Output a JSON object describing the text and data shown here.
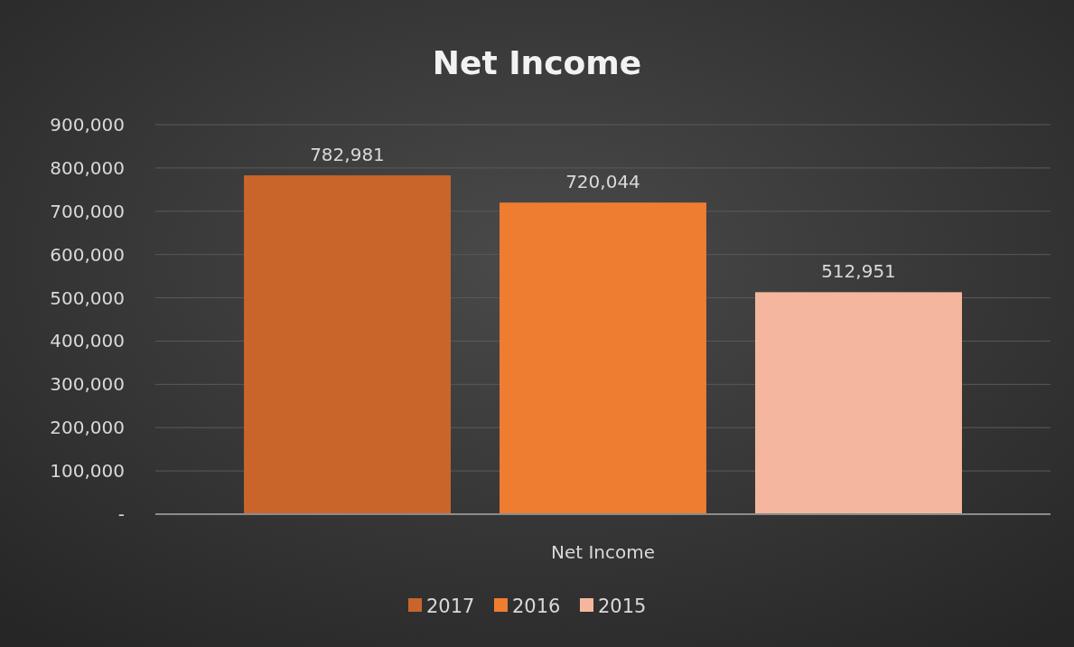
{
  "chart_data": {
    "type": "bar",
    "title": "Net Income",
    "categories": [
      "Net Income"
    ],
    "series": [
      {
        "name": "2017",
        "color": "#c9652b",
        "values": [
          782981
        ],
        "value_labels": [
          "782,981"
        ]
      },
      {
        "name": "2016",
        "color": "#ef7d31",
        "values": [
          720044
        ],
        "value_labels": [
          "720,044"
        ]
      },
      {
        "name": "2015",
        "color": "#f4b79e",
        "values": [
          512951
        ],
        "value_labels": [
          "512,951"
        ]
      }
    ],
    "ylim": [
      0,
      900000
    ],
    "yticks": [
      {
        "value": 0,
        "label": "-"
      },
      {
        "value": 100000,
        "label": "100,000"
      },
      {
        "value": 200000,
        "label": "200,000"
      },
      {
        "value": 300000,
        "label": "300,000"
      },
      {
        "value": 400000,
        "label": "400,000"
      },
      {
        "value": 500000,
        "label": "500,000"
      },
      {
        "value": 600000,
        "label": "600,000"
      },
      {
        "value": 700000,
        "label": "700,000"
      },
      {
        "value": 800000,
        "label": "800,000"
      },
      {
        "value": 900000,
        "label": "900,000"
      }
    ],
    "grid": "y",
    "legend": "bottom"
  }
}
